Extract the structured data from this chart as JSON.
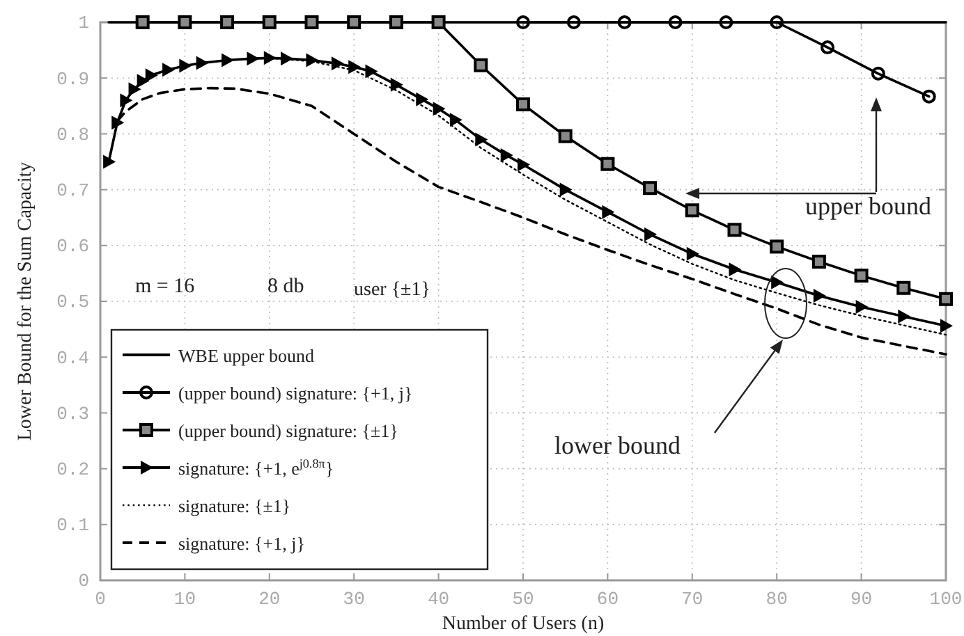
{
  "chart_data": {
    "type": "line",
    "xlabel": "Number of Users (n)",
    "ylabel": "Lower Bound for the Sum Capacity",
    "xlim": [
      0,
      100
    ],
    "ylim": [
      0,
      1
    ],
    "xticks": [
      0,
      10,
      20,
      30,
      40,
      50,
      60,
      70,
      80,
      90,
      100
    ],
    "yticks": [
      0,
      {
        "value": 0.1,
        "label": "0.1"
      },
      {
        "value": 0.2,
        "label": "0.2"
      },
      {
        "value": 0.3,
        "label": "0.3"
      },
      {
        "value": 0.4,
        "label": "0.4"
      },
      {
        "value": 0.5,
        "label": "0.5"
      },
      {
        "value": 0.6,
        "label": "0.6"
      },
      {
        "value": 0.7,
        "label": "0.7"
      },
      {
        "value": 0.8,
        "label": "0.8"
      },
      {
        "value": 0.9,
        "label": "0.9"
      },
      1
    ],
    "grid": true,
    "legend": "bottom left",
    "series": [
      {
        "name": "WBE upper bound",
        "color": "#000000",
        "marker": "none",
        "line_style": "solid",
        "x": [
          1,
          100
        ],
        "values": [
          1,
          1
        ]
      },
      {
        "name": "(upper bound) signature: {+1, j}",
        "color": "#000000",
        "marker": "circle",
        "line_style": "solid",
        "x": [
          50,
          56,
          62,
          68,
          74,
          80,
          86,
          92,
          98
        ],
        "values": [
          1,
          1,
          1,
          1,
          1,
          1,
          0.955,
          0.908,
          0.867
        ]
      },
      {
        "name": "(upper bound) signature: {±1}",
        "color": "#000000",
        "marker": "square",
        "line_style": "solid",
        "x": [
          5,
          10,
          15,
          20,
          25,
          30,
          35,
          40,
          45,
          50,
          55,
          60,
          65,
          70,
          75,
          80,
          85,
          90,
          95,
          100
        ],
        "values": [
          1,
          1,
          1,
          1,
          1,
          1,
          1,
          1,
          0.923,
          0.853,
          0.796,
          0.746,
          0.703,
          0.663,
          0.628,
          0.598,
          0.571,
          0.546,
          0.524,
          0.504
        ]
      },
      {
        "name": "signature: {+1, e$^{j0.8π}$}",
        "color": "#000000",
        "marker": "triangle",
        "line_style": "solid",
        "x": [
          1,
          2,
          3,
          4,
          5,
          6,
          8,
          10,
          12,
          15,
          18,
          20,
          22,
          25,
          28,
          30,
          32,
          35,
          38,
          40,
          42,
          45,
          48,
          50,
          55,
          60,
          65,
          70,
          75,
          80,
          85,
          90,
          95,
          100
        ],
        "values": [
          0.75,
          0.82,
          0.86,
          0.88,
          0.895,
          0.905,
          0.915,
          0.922,
          0.927,
          0.932,
          0.935,
          0.936,
          0.935,
          0.932,
          0.926,
          0.92,
          0.912,
          0.888,
          0.862,
          0.845,
          0.825,
          0.79,
          0.762,
          0.745,
          0.7,
          0.66,
          0.62,
          0.585,
          0.557,
          0.534,
          0.51,
          0.49,
          0.473,
          0.456
        ]
      },
      {
        "name": "signature: {±1}",
        "color": "#000000",
        "marker": "none",
        "line_style": "dotted",
        "x": [
          1,
          2,
          3,
          4,
          5,
          6,
          8,
          10,
          15,
          20,
          25,
          30,
          35,
          40,
          45,
          50,
          55,
          60,
          65,
          70,
          75,
          80,
          85,
          90,
          95,
          100
        ],
        "values": [
          0.75,
          0.82,
          0.86,
          0.88,
          0.895,
          0.905,
          0.915,
          0.922,
          0.932,
          0.936,
          0.93,
          0.914,
          0.878,
          0.833,
          0.775,
          0.727,
          0.682,
          0.642,
          0.602,
          0.567,
          0.538,
          0.515,
          0.493,
          0.474,
          0.457,
          0.44
        ]
      },
      {
        "name": "signature: {+1, j}",
        "color": "#000000",
        "marker": "none",
        "line_style": "dashed",
        "x": [
          2,
          3,
          5,
          7,
          10,
          13,
          16,
          20,
          25,
          30,
          35,
          40,
          45,
          50,
          55,
          60,
          65,
          70,
          75,
          80,
          85,
          90,
          95,
          100
        ],
        "values": [
          0.823,
          0.84,
          0.862,
          0.873,
          0.88,
          0.882,
          0.881,
          0.872,
          0.85,
          0.8,
          0.75,
          0.705,
          0.678,
          0.65,
          0.62,
          0.592,
          0.565,
          0.54,
          0.513,
          0.487,
          0.458,
          0.435,
          0.42,
          0.405
        ]
      }
    ],
    "annotations": [
      "m = 16",
      "8 db",
      "user {±1}",
      "upper bound",
      "lower bound"
    ]
  }
}
